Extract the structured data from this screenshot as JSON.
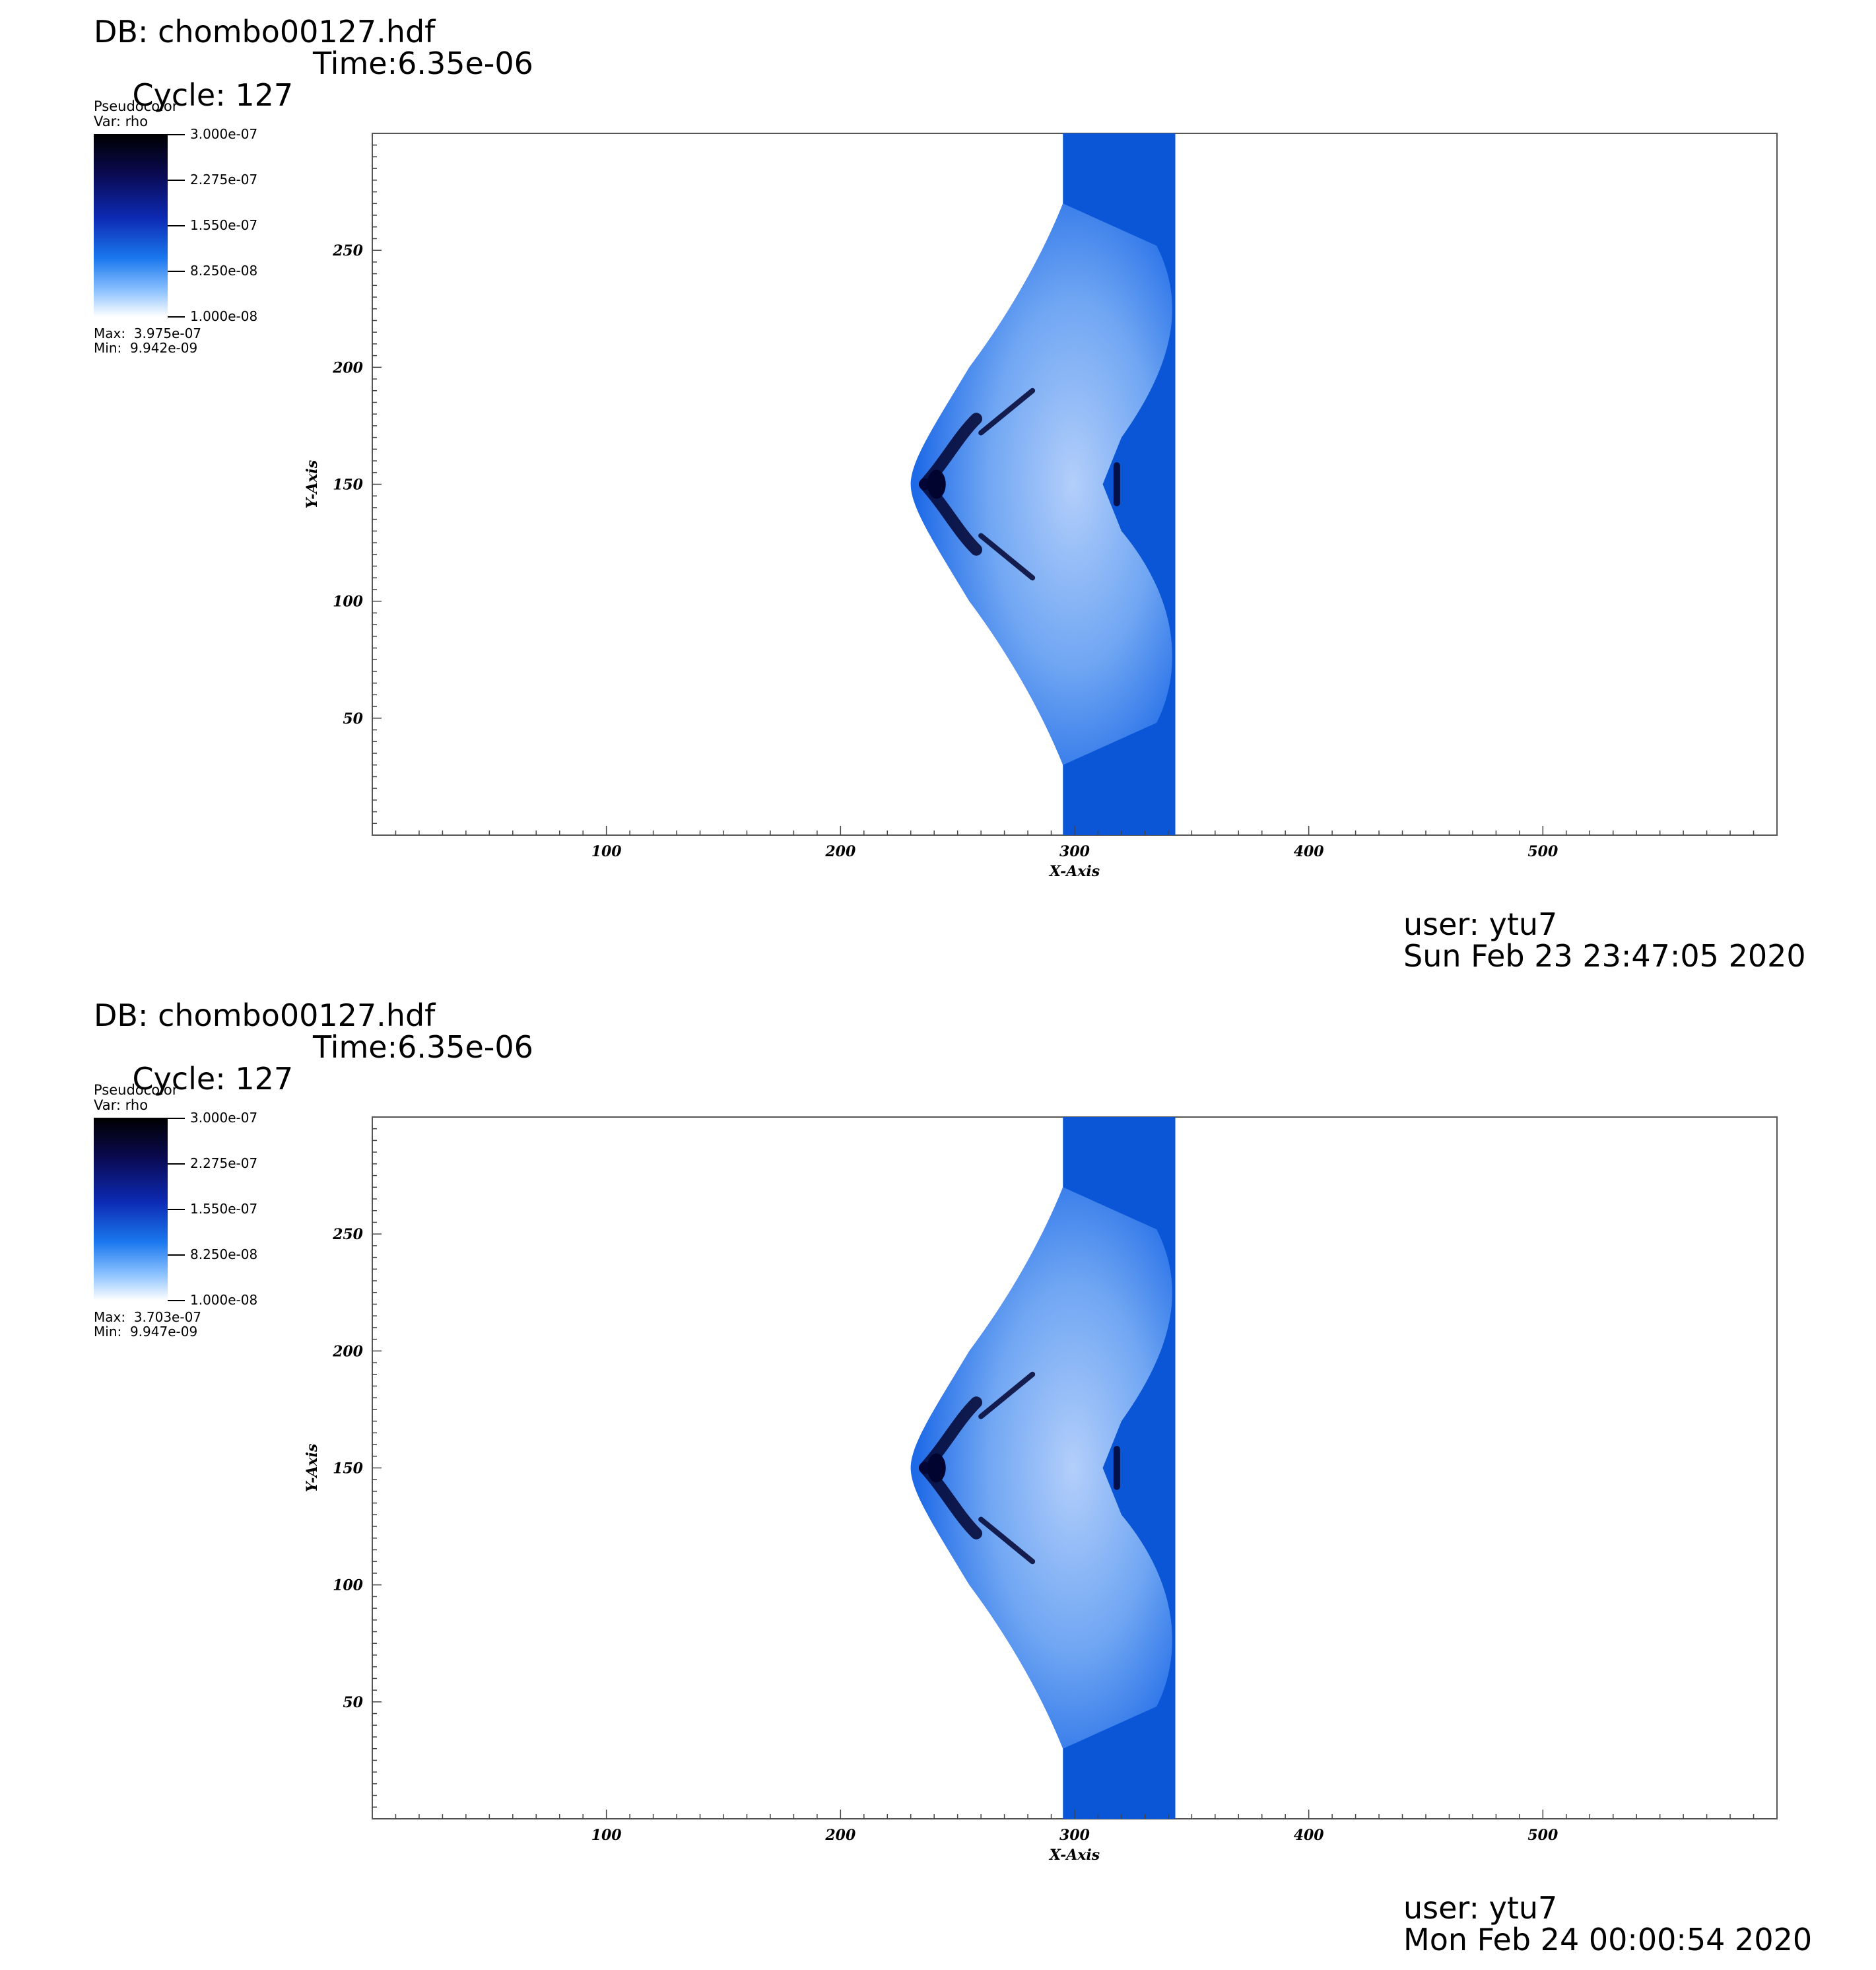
{
  "panels": [
    {
      "db": "DB: chombo00127.hdf",
      "cycle": "Cycle: 127",
      "time": "Time:6.35e-06",
      "legend": {
        "title": "Pseudocolor",
        "var": "Var: rho",
        "ticks": [
          "3.000e-07",
          "2.275e-07",
          "1.550e-07",
          "8.250e-08",
          "1.000e-08"
        ],
        "max": "Max:  3.975e-07",
        "min": "Min:  9.942e-09"
      },
      "user": "user: ytu7",
      "date": "Sun Feb 23 23:47:05 2020"
    },
    {
      "db": "DB: chombo00127.hdf",
      "cycle": "Cycle: 127",
      "time": "Time:6.35e-06",
      "legend": {
        "title": "Pseudocolor",
        "var": "Var: rho",
        "ticks": [
          "3.000e-07",
          "2.275e-07",
          "1.550e-07",
          "8.250e-08",
          "1.000e-08"
        ],
        "max": "Max:  3.703e-07",
        "min": "Min:  9.947e-09"
      },
      "user": "user: ytu7",
      "date": "Mon Feb 24 00:00:54 2020"
    }
  ],
  "chart_data": [
    {
      "type": "heatmap",
      "variable": "rho",
      "xlabel": "X-Axis",
      "ylabel": "Y-Axis",
      "xlim": [
        0,
        600
      ],
      "ylim": [
        0,
        300
      ],
      "xticks": [
        100,
        200,
        300,
        400,
        500
      ],
      "yticks": [
        50,
        100,
        150,
        200,
        250
      ],
      "colorbar_range": [
        1e-08,
        3e-07
      ],
      "legend_position": "top-left",
      "colors": {
        "background": "#0a56d6",
        "light": "#cfe2ff",
        "dark": "#020430"
      }
    },
    {
      "type": "heatmap",
      "variable": "rho",
      "xlabel": "X-Axis",
      "ylabel": "Y-Axis",
      "xlim": [
        0,
        600
      ],
      "ylim": [
        0,
        300
      ],
      "xticks": [
        100,
        200,
        300,
        400,
        500
      ],
      "yticks": [
        50,
        100,
        150,
        200,
        250
      ],
      "colorbar_range": [
        1e-08,
        3e-07
      ],
      "legend_position": "top-left",
      "colors": {
        "background": "#0a56d6",
        "light": "#cfe2ff",
        "dark": "#020430"
      }
    }
  ]
}
